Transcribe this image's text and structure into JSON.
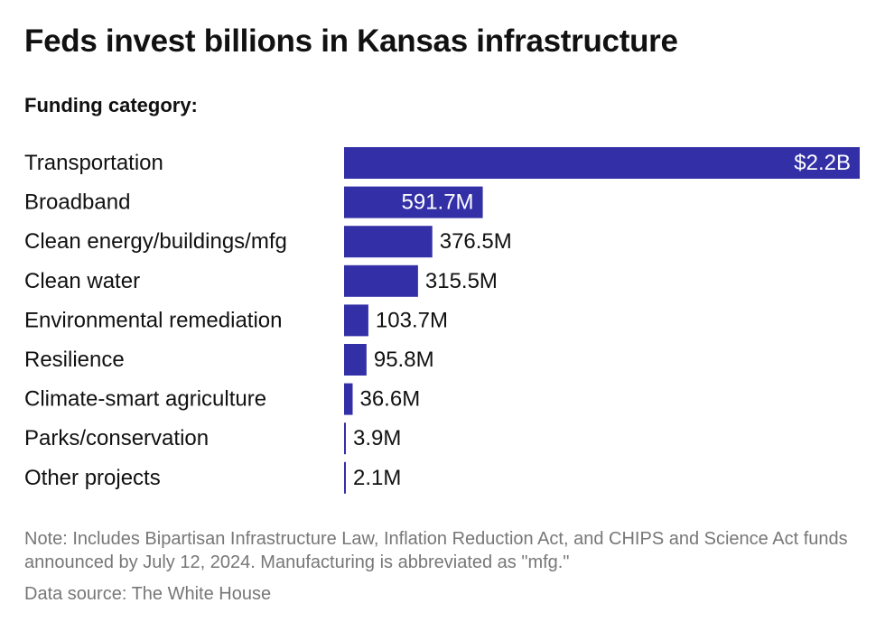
{
  "title": "Feds invest billions in Kansas infrastructure",
  "subtitle": "Funding category:",
  "note": "Note: Includes Bipartisan Infrastructure Law, Inflation Reduction Act, and CHIPS and Science Act funds announced by July 12, 2024. Manufacturing is abbreviated as \"mfg.\"",
  "source": "Data source: The White House",
  "colors": {
    "bar": "#3330a7",
    "label_inside": "#ffffff",
    "label_outside": "#111111"
  },
  "chart_data": {
    "type": "bar",
    "orientation": "horizontal",
    "title": "Feds invest billions in Kansas infrastructure",
    "subtitle": "Funding category:",
    "categories": [
      "Transportation",
      "Broadband",
      "Clean energy/buildings/mfg",
      "Clean water",
      "Environmental remediation",
      "Resilience",
      "Climate-smart agriculture",
      "Parks/conservation",
      "Other projects"
    ],
    "values": [
      2200000000,
      591700000,
      376500000,
      315500000,
      103700000,
      95800000,
      36600000,
      3900000,
      2100000
    ],
    "value_labels": [
      "$2.2B",
      "591.7M",
      "376.5M",
      "315.5M",
      "103.7M",
      "95.8M",
      "36.6M",
      "3.9M",
      "2.1M"
    ],
    "xlim": [
      0,
      2200000000
    ],
    "grid": false,
    "legend": "none"
  }
}
